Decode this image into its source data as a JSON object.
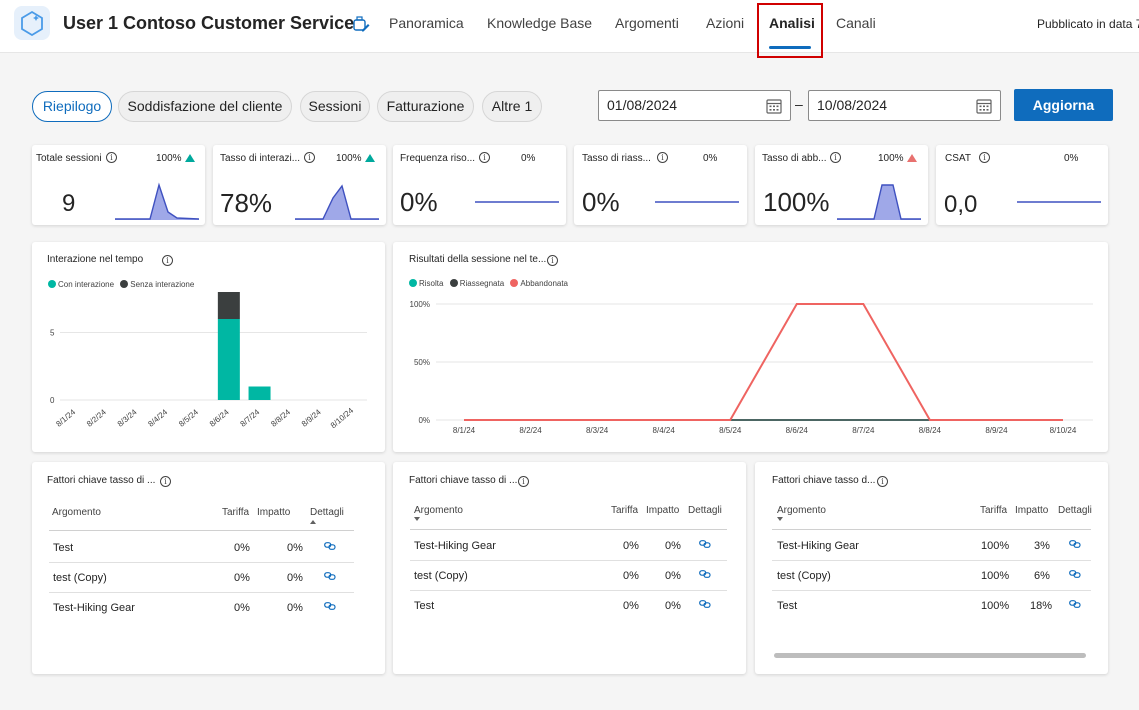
{
  "header": {
    "app_title": "User 1 Contoso Customer Service",
    "tabs": [
      {
        "label": "Panoramica"
      },
      {
        "label": "Knowledge Base"
      },
      {
        "label": "Argomenti"
      },
      {
        "label": "Azioni"
      },
      {
        "label": "Analisi",
        "active": true
      },
      {
        "label": "Canali"
      }
    ],
    "published": "Pubblicato in data 7"
  },
  "filters": {
    "pills": [
      "Riepilogo",
      "Soddisfazione del cliente",
      "Sessioni",
      "Fatturazione",
      "Altre 1"
    ],
    "active_pill": "Riepilogo",
    "start_date": "01/08/2024",
    "end_date": "10/08/2024",
    "separator": "–",
    "refresh_label": "Aggiorna"
  },
  "kpis": [
    {
      "label": "Totale sessioni",
      "pct": "100%",
      "trend": "up",
      "value": "9"
    },
    {
      "label": "Tasso di interazi...",
      "pct": "100%",
      "trend": "up",
      "value": "78%"
    },
    {
      "label": "Frequenza riso...",
      "pct": "0%",
      "trend": "none",
      "value": "0%"
    },
    {
      "label": "Tasso di riass...",
      "pct": "0%",
      "trend": "none",
      "value": "0%"
    },
    {
      "label": "Tasso di abb...",
      "pct": "100%",
      "trend": "up-red",
      "value": "100%"
    },
    {
      "label": "CSAT",
      "pct": "0%",
      "trend": "none",
      "value": "0,0"
    }
  ],
  "colors": {
    "accent": "#0f6cbd",
    "engaged": "#00b7a3",
    "unengaged": "#3b3f3f",
    "resolved": "#00b7a3",
    "escalated": "#3b3f3f",
    "abandoned": "#ef6461",
    "sparkline": "#3f51c0",
    "sparkfill": "#9fa8e8"
  },
  "chart_data": [
    {
      "type": "bar",
      "title": "Interazione nel tempo",
      "categories": [
        "8/1/24",
        "8/2/24",
        "8/3/24",
        "8/4/24",
        "8/5/24",
        "8/6/24",
        "8/7/24",
        "8/8/24",
        "8/9/24",
        "8/10/24"
      ],
      "series": [
        {
          "name": "Con interazione",
          "values": [
            0,
            0,
            0,
            0,
            0,
            6,
            1,
            0,
            0,
            0
          ]
        },
        {
          "name": "Senza interazione",
          "values": [
            0,
            0,
            0,
            0,
            0,
            2,
            0,
            0,
            0,
            0
          ]
        }
      ],
      "stacked": true,
      "y_ticks": [
        "0",
        "5"
      ],
      "ylim": [
        0,
        8
      ],
      "legend_position": "top-left"
    },
    {
      "type": "line",
      "title": "Risultati della sessione nel te...",
      "categories": [
        "8/1/24",
        "8/2/24",
        "8/3/24",
        "8/4/24",
        "8/5/24",
        "8/6/24",
        "8/7/24",
        "8/8/24",
        "8/9/24",
        "8/10/24"
      ],
      "series": [
        {
          "name": "Risolta",
          "values": [
            0,
            0,
            0,
            0,
            0,
            0,
            0,
            0,
            0,
            0
          ]
        },
        {
          "name": "Riassegnata",
          "values": [
            0,
            0,
            0,
            0,
            0,
            0,
            0,
            0,
            0,
            0
          ]
        },
        {
          "name": "Abbandonata",
          "values": [
            0,
            0,
            0,
            0,
            0,
            100,
            100,
            0,
            0,
            0
          ]
        }
      ],
      "y_ticks": [
        "0%",
        "50%",
        "100%"
      ],
      "ylim": [
        0,
        100
      ],
      "legend_position": "top-left"
    }
  ],
  "tables": [
    {
      "title": "Fattori chiave tasso di ...",
      "columns": [
        "Argomento",
        "Tariffa",
        "Impatto",
        "Dettagli"
      ],
      "rows": [
        {
          "topic": "Test",
          "rate": "0%",
          "impact": "0%"
        },
        {
          "topic": "test (Copy)",
          "rate": "0%",
          "impact": "0%"
        },
        {
          "topic": "Test-Hiking Gear",
          "rate": "0%",
          "impact": "0%"
        }
      ]
    },
    {
      "title": "Fattori chiave tasso di ...",
      "columns": [
        "Argomento",
        "Tariffa",
        "Impatto",
        "Dettagli"
      ],
      "rows": [
        {
          "topic": "Test-Hiking Gear",
          "rate": "0%",
          "impact": "0%"
        },
        {
          "topic": "test (Copy)",
          "rate": "0%",
          "impact": "0%"
        },
        {
          "topic": "Test",
          "rate": "0%",
          "impact": "0%"
        }
      ]
    },
    {
      "title": "Fattori chiave tasso d...",
      "columns": [
        "Argomento",
        "Tariffa",
        "Impatto",
        "Dettagli"
      ],
      "rows": [
        {
          "topic": "Test-Hiking Gear",
          "rate": "100%",
          "impact": "3%"
        },
        {
          "topic": "test (Copy)",
          "rate": "100%",
          "impact": "6%"
        },
        {
          "topic": "Test",
          "rate": "100%",
          "impact": "18%"
        }
      ]
    }
  ]
}
